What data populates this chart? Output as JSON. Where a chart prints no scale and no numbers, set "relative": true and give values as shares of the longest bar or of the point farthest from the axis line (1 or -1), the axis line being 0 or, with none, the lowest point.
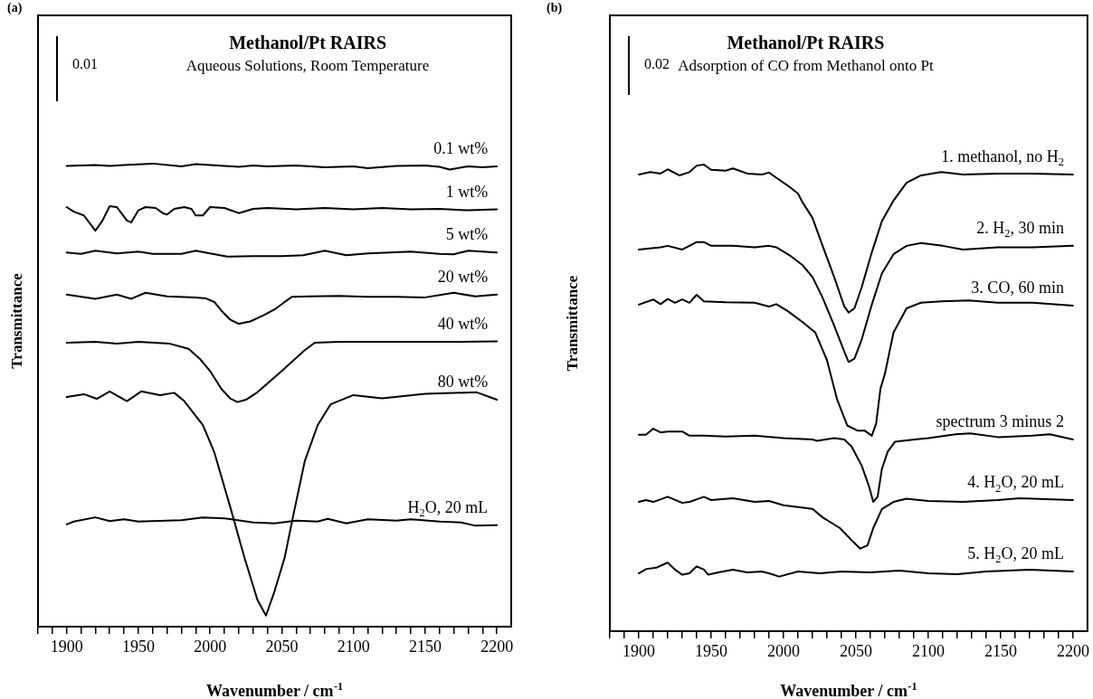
{
  "chart_data": [
    {
      "type": "line",
      "title": "Methanol/Pt RAIRS",
      "subtitle": "Aqueous Solutions, Room Temperature",
      "xlabel": "Wavenumber / cm$^{-1}$",
      "ylabel": "Transmittance",
      "annotations": [
        "(a)",
        "0.01"
      ],
      "relative": true,
      "marker": "none",
      "line_style": "solid",
      "xlim": [
        1880,
        2210
      ],
      "xticks": [
        {
          "value": 1880,
          "label": null
        },
        {
          "value": 1890,
          "label": null
        },
        1900,
        {
          "value": 1910,
          "label": null
        },
        {
          "value": 1920,
          "label": null
        },
        {
          "value": 1930,
          "label": null
        },
        {
          "value": 1940,
          "label": null
        },
        1950,
        {
          "value": 1960,
          "label": null
        },
        {
          "value": 1970,
          "label": null
        },
        {
          "value": 1980,
          "label": null
        },
        {
          "value": 1990,
          "label": null
        },
        2000,
        {
          "value": 2010,
          "label": null
        },
        {
          "value": 2020,
          "label": null
        },
        {
          "value": 2030,
          "label": null
        },
        {
          "value": 2040,
          "label": null
        },
        2050,
        {
          "value": 2060,
          "label": null
        },
        {
          "value": 2070,
          "label": null
        },
        {
          "value": 2080,
          "label": null
        },
        {
          "value": 2090,
          "label": null
        },
        2100,
        {
          "value": 2110,
          "label": null
        },
        {
          "value": 2120,
          "label": null
        },
        {
          "value": 2130,
          "label": null
        },
        {
          "value": 2140,
          "label": null
        },
        2150,
        {
          "value": 2160,
          "label": null
        },
        {
          "value": 2170,
          "label": null
        },
        {
          "value": 2180,
          "label": null
        },
        {
          "value": 2190,
          "label": null
        },
        2200
      ],
      "series": [
        {
          "name": "0.1 wt%",
          "color": "#000000",
          "x": [
            1900,
            1910,
            1920,
            1930,
            1940,
            1960,
            1980,
            1990,
            2000,
            2020,
            2030,
            2040,
            2060,
            2080,
            2100,
            2110,
            2130,
            2150,
            2160,
            2167,
            2180,
            2190,
            2200
          ],
          "values": [
            0.995,
            0.996,
            0.997,
            0.995,
            0.997,
            1.0,
            0.994,
            0.999,
            0.997,
            0.993,
            0.996,
            0.994,
            0.996,
            0.992,
            0.994,
            0.99,
            0.995,
            0.996,
            0.993,
            0.987,
            0.994,
            0.992,
            0.994
          ]
        },
        {
          "name": "1 wt%",
          "color": "#000000",
          "x": [
            1900,
            1905,
            1912,
            1920,
            1925,
            1930,
            1935,
            1942,
            1945,
            1950,
            1955,
            1962,
            1967,
            1970,
            1975,
            1982,
            1987,
            1990,
            1995,
            2000,
            2010,
            2020,
            2030,
            2040,
            2060,
            2080,
            2100,
            2120,
            2140,
            2160,
            2180,
            2200
          ],
          "values": [
            0.906,
            0.896,
            0.888,
            0.855,
            0.877,
            0.908,
            0.906,
            0.877,
            0.873,
            0.899,
            0.906,
            0.904,
            0.893,
            0.89,
            0.902,
            0.906,
            0.902,
            0.888,
            0.888,
            0.906,
            0.904,
            0.893,
            0.902,
            0.904,
            0.901,
            0.904,
            0.901,
            0.904,
            0.901,
            0.902,
            0.899,
            0.901
          ]
        },
        {
          "name": "5 wt%",
          "color": "#000000",
          "x": [
            1900,
            1910,
            1920,
            1935,
            1950,
            1960,
            1980,
            1990,
            2000,
            2012,
            2030,
            2050,
            2065,
            2080,
            2095,
            2110,
            2140,
            2160,
            2170,
            2180,
            2200
          ],
          "values": [
            0.808,
            0.805,
            0.812,
            0.806,
            0.81,
            0.805,
            0.805,
            0.812,
            0.806,
            0.799,
            0.8,
            0.8,
            0.802,
            0.812,
            0.802,
            0.806,
            0.81,
            0.805,
            0.804,
            0.812,
            0.808
          ]
        },
        {
          "name": "20 wt%",
          "color": "#000000",
          "x": [
            1900,
            1920,
            1935,
            1945,
            1955,
            1970,
            1990,
            1997,
            2003,
            2008,
            2014,
            2020,
            2028,
            2037,
            2045,
            2052,
            2057,
            2070,
            2090,
            2110,
            2130,
            2150,
            2170,
            2185,
            2200
          ],
          "values": [
            0.717,
            0.708,
            0.717,
            0.708,
            0.721,
            0.713,
            0.711,
            0.709,
            0.701,
            0.682,
            0.663,
            0.654,
            0.659,
            0.672,
            0.685,
            0.701,
            0.712,
            0.713,
            0.714,
            0.712,
            0.712,
            0.711,
            0.721,
            0.713,
            0.717
          ]
        },
        {
          "name": "40 wt%",
          "color": "#000000",
          "x": [
            1900,
            1920,
            1935,
            1950,
            1972,
            1985,
            1993,
            2000,
            2008,
            2014,
            2019,
            2025,
            2033,
            2050,
            2066,
            2073,
            2090,
            2110,
            2130,
            2150,
            2170,
            2200
          ],
          "values": [
            0.613,
            0.615,
            0.611,
            0.615,
            0.611,
            0.6,
            0.578,
            0.552,
            0.513,
            0.493,
            0.485,
            0.49,
            0.506,
            0.552,
            0.597,
            0.613,
            0.615,
            0.615,
            0.615,
            0.615,
            0.615,
            0.616
          ]
        },
        {
          "name": "80 wt%",
          "color": "#000000",
          "x": [
            1900,
            1912,
            1921,
            1930,
            1942,
            1952,
            1965,
            1975,
            1982,
            1995,
            2003,
            2014,
            2024,
            2033,
            2039,
            2045,
            2052,
            2058,
            2066,
            2075,
            2084,
            2100,
            2120,
            2150,
            2186,
            2200
          ],
          "values": [
            0.496,
            0.502,
            0.492,
            0.508,
            0.487,
            0.508,
            0.5,
            0.505,
            0.487,
            0.435,
            0.376,
            0.259,
            0.149,
            0.058,
            0.024,
            0.077,
            0.149,
            0.24,
            0.357,
            0.435,
            0.48,
            0.5,
            0.493,
            0.503,
            0.506,
            0.49
          ]
        },
        {
          "name": "H$_{2}$O, 20 mL",
          "color": "#000000",
          "x": [
            1900,
            1905,
            1920,
            1930,
            1940,
            1950,
            1970,
            1980,
            1995,
            2010,
            2030,
            2045,
            2060,
            2075,
            2082,
            2095,
            2110,
            2130,
            2140,
            2160,
            2175,
            2185,
            2200
          ],
          "values": [
            0.221,
            0.227,
            0.236,
            0.228,
            0.232,
            0.227,
            0.229,
            0.23,
            0.236,
            0.234,
            0.225,
            0.223,
            0.229,
            0.227,
            0.233,
            0.223,
            0.232,
            0.229,
            0.232,
            0.227,
            0.225,
            0.218,
            0.219
          ]
        }
      ]
    },
    {
      "type": "line",
      "title": "Methanol/Pt RAIRS",
      "subtitle": "Adsorption of CO from Methanol onto Pt",
      "xlabel": "Wavenumber / cm$^{-1}$",
      "ylabel": "Transmittance",
      "annotations": [
        "(b)",
        "0.02"
      ],
      "relative": true,
      "marker": "none",
      "line_style": "solid",
      "xlim": [
        1880,
        2210
      ],
      "xticks": [
        {
          "value": 1880,
          "label": null
        },
        {
          "value": 1890,
          "label": null
        },
        1900,
        {
          "value": 1910,
          "label": null
        },
        {
          "value": 1920,
          "label": null
        },
        {
          "value": 1930,
          "label": null
        },
        {
          "value": 1940,
          "label": null
        },
        1950,
        {
          "value": 1960,
          "label": null
        },
        {
          "value": 1970,
          "label": null
        },
        {
          "value": 1980,
          "label": null
        },
        {
          "value": 1990,
          "label": null
        },
        2000,
        {
          "value": 2010,
          "label": null
        },
        {
          "value": 2020,
          "label": null
        },
        {
          "value": 2030,
          "label": null
        },
        {
          "value": 2040,
          "label": null
        },
        2050,
        {
          "value": 2060,
          "label": null
        },
        {
          "value": 2070,
          "label": null
        },
        {
          "value": 2080,
          "label": null
        },
        {
          "value": 2090,
          "label": null
        },
        2100,
        {
          "value": 2110,
          "label": null
        },
        {
          "value": 2120,
          "label": null
        },
        {
          "value": 2130,
          "label": null
        },
        {
          "value": 2140,
          "label": null
        },
        2150,
        {
          "value": 2160,
          "label": null
        },
        {
          "value": 2170,
          "label": null
        },
        {
          "value": 2180,
          "label": null
        },
        {
          "value": 2190,
          "label": null
        },
        2200
      ],
      "series": [
        {
          "name": "1. methanol, no H$_{2}$",
          "color": "#000000",
          "x": [
            1900,
            1908,
            1915,
            1920,
            1928,
            1935,
            1940,
            1945,
            1950,
            1960,
            1965,
            1975,
            1985,
            1990,
            1995,
            2003,
            2010,
            2013,
            2020,
            2027,
            2035,
            2042,
            2045,
            2049,
            2054,
            2061,
            2068,
            2076,
            2085,
            2095,
            2109,
            2124,
            2148,
            2172,
            2200
          ],
          "values": [
            0.979,
            0.984,
            0.981,
            0.99,
            0.977,
            0.984,
            0.998,
            1.0,
            0.989,
            0.987,
            0.992,
            0.981,
            0.979,
            0.983,
            0.972,
            0.955,
            0.938,
            0.92,
            0.886,
            0.826,
            0.759,
            0.696,
            0.683,
            0.692,
            0.737,
            0.812,
            0.879,
            0.923,
            0.961,
            0.977,
            0.984,
            0.979,
            0.981,
            0.981,
            0.979
          ]
        },
        {
          "name": "2. H$_{2}$, 30 min",
          "color": "#000000",
          "x": [
            1900,
            1915,
            1920,
            1930,
            1940,
            1945,
            1950,
            1965,
            1980,
            1990,
            1995,
            2005,
            2013,
            2020,
            2027,
            2035,
            2042,
            2045,
            2049,
            2054,
            2061,
            2068,
            2076,
            2085,
            2095,
            2110,
            2124,
            2148,
            2172,
            2200
          ],
          "values": [
            0.818,
            0.823,
            0.826,
            0.818,
            0.834,
            0.834,
            0.826,
            0.826,
            0.823,
            0.826,
            0.823,
            0.804,
            0.785,
            0.759,
            0.715,
            0.655,
            0.599,
            0.577,
            0.584,
            0.625,
            0.7,
            0.767,
            0.808,
            0.826,
            0.832,
            0.826,
            0.818,
            0.823,
            0.823,
            0.826
          ]
        },
        {
          "name": "3. CO, 60 min",
          "color": "#000000",
          "x": [
            1900,
            1910,
            1915,
            1920,
            1925,
            1930,
            1935,
            1940,
            1945,
            1960,
            1980,
            1990,
            1995,
            2003,
            2013,
            2022,
            2030,
            2037,
            2044,
            2051,
            2056,
            2061,
            2064,
            2067,
            2070,
            2076,
            2085,
            2095,
            2109,
            2128,
            2148,
            2172,
            2200
          ],
          "values": [
            0.7,
            0.711,
            0.701,
            0.712,
            0.704,
            0.711,
            0.704,
            0.721,
            0.707,
            0.705,
            0.704,
            0.696,
            0.701,
            0.686,
            0.663,
            0.64,
            0.581,
            0.497,
            0.441,
            0.43,
            0.43,
            0.419,
            0.445,
            0.52,
            0.551,
            0.64,
            0.692,
            0.704,
            0.707,
            0.709,
            0.704,
            0.704,
            0.698
          ]
        },
        {
          "name": "spectrum 3 minus 2",
          "color": "#000000",
          "x": [
            1900,
            1905,
            1910,
            1915,
            1920,
            1930,
            1935,
            1945,
            1960,
            1980,
            2000,
            2020,
            2023,
            2035,
            2042,
            2047,
            2054,
            2059,
            2062,
            2065,
            2068,
            2072,
            2077,
            2085,
            2100,
            2119,
            2129,
            2148,
            2172,
            2184,
            2200
          ],
          "values": [
            0.421,
            0.421,
            0.434,
            0.426,
            0.428,
            0.428,
            0.419,
            0.419,
            0.417,
            0.419,
            0.414,
            0.411,
            0.408,
            0.414,
            0.411,
            0.396,
            0.355,
            0.311,
            0.277,
            0.288,
            0.348,
            0.385,
            0.406,
            0.409,
            0.414,
            0.422,
            0.424,
            0.416,
            0.419,
            0.422,
            0.411
          ]
        },
        {
          "name": "4. H$_{2}$O, 20 mL",
          "color": "#000000",
          "x": [
            1900,
            1905,
            1910,
            1920,
            1930,
            1935,
            1945,
            1950,
            1965,
            1980,
            1990,
            2000,
            2020,
            2027,
            2039,
            2047,
            2053,
            2058,
            2062,
            2068,
            2076,
            2085,
            2100,
            2124,
            2148,
            2163,
            2200
          ],
          "values": [
            0.277,
            0.281,
            0.277,
            0.288,
            0.275,
            0.277,
            0.288,
            0.281,
            0.285,
            0.277,
            0.279,
            0.27,
            0.262,
            0.244,
            0.221,
            0.195,
            0.177,
            0.184,
            0.221,
            0.262,
            0.277,
            0.284,
            0.279,
            0.277,
            0.281,
            0.285,
            0.281
          ]
        },
        {
          "name": "5. H$_{2}$O, 20 mL",
          "color": "#000000",
          "x": [
            1900,
            1905,
            1912,
            1917,
            1920,
            1925,
            1930,
            1935,
            1940,
            1945,
            1948,
            1955,
            1965,
            1975,
            1985,
            1990,
            1997,
            2010,
            2025,
            2040,
            2060,
            2080,
            2100,
            2120,
            2140,
            2170,
            2200
          ],
          "values": [
            0.124,
            0.133,
            0.136,
            0.143,
            0.147,
            0.132,
            0.121,
            0.124,
            0.139,
            0.132,
            0.121,
            0.126,
            0.132,
            0.126,
            0.128,
            0.124,
            0.117,
            0.128,
            0.124,
            0.128,
            0.126,
            0.13,
            0.124,
            0.122,
            0.128,
            0.132,
            0.128
          ]
        }
      ]
    }
  ]
}
